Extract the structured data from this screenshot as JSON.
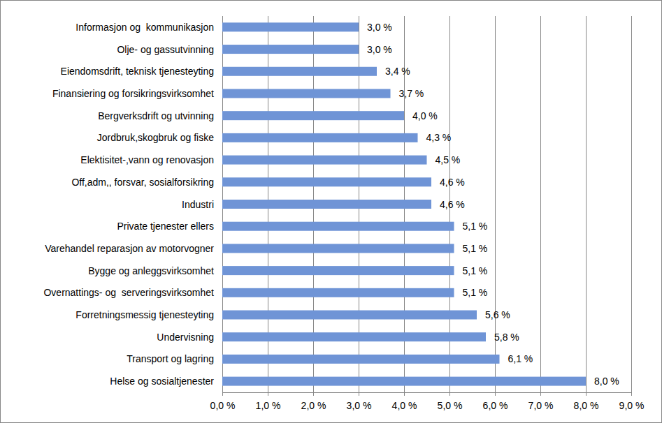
{
  "chart_data": {
    "type": "bar",
    "orientation": "horizontal",
    "categories": [
      "Informasjon og  kommunikasjon",
      "Olje- og gassutvinning",
      "Eiendomsdrift, teknisk tjenesteyting",
      "Finansiering og forsikringsvirksomhet",
      "Bergverksdrift og utvinning",
      "Jordbruk,skogbruk og fiske",
      "Elektisitet-,vann og renovasjon",
      "Off,adm,, forsvar, sosialforsikring",
      "Industri",
      "Private tjenester ellers",
      "Varehandel reparasjon av motorvogner",
      "Bygge og anleggsvirksomhet",
      "Overnattings- og  serveringsvirksomhet",
      "Forretningsmessig tjenesteyting",
      "Undervisning",
      "Transport og lagring",
      "Helse og sosialtjenester"
    ],
    "values": [
      3.0,
      3.0,
      3.4,
      3.7,
      4.0,
      4.3,
      4.5,
      4.6,
      4.6,
      5.1,
      5.1,
      5.1,
      5.1,
      5.6,
      5.8,
      6.1,
      8.0
    ],
    "value_labels": [
      "3,0 %",
      "3,0 %",
      "3,4 %",
      "3,7 %",
      "4,0 %",
      "4,3 %",
      "4,5 %",
      "4,6 %",
      "4,6 %",
      "5,1 %",
      "5,1 %",
      "5,1 %",
      "5,1 %",
      "5,6 %",
      "5,8 %",
      "6,1 %",
      "8,0 %"
    ],
    "color": "#6f94d6",
    "xlim": [
      0,
      9
    ],
    "xticks": [
      {
        "value": 0,
        "label": "0,0 %"
      },
      {
        "value": 1,
        "label": "1,0 %"
      },
      {
        "value": 2,
        "label": "2,0 %"
      },
      {
        "value": 3,
        "label": "3,0 %"
      },
      {
        "value": 4,
        "label": "4,0 %"
      },
      {
        "value": 5,
        "label": "5,0 %"
      },
      {
        "value": 6,
        "label": "6,0 %"
      },
      {
        "value": 7,
        "label": "7,0 %"
      },
      {
        "value": 8,
        "label": "8,0 %"
      },
      {
        "value": 9,
        "label": "9,0 %"
      }
    ],
    "grid": true,
    "data_labels": true
  }
}
